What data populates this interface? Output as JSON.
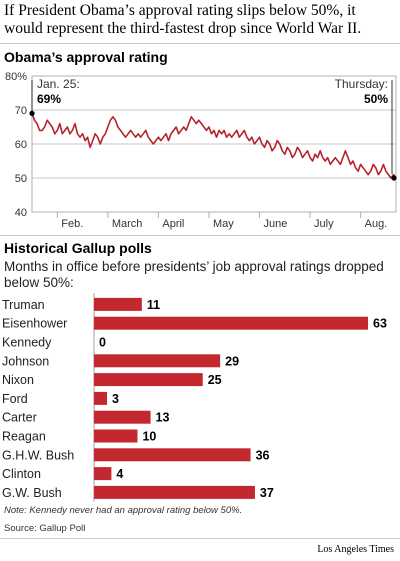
{
  "headline": "If President Obama’s approval rating slips below 50%, it would represent the third-fastest drop since World War II.",
  "line_section_title": "Obama’s approval rating",
  "bar_section_title": "Historical Gallup polls",
  "bar_subtitle": "Months in office before presidents’ job approval ratings dropped below 50%:",
  "note": "Note: Kennedy never had an approval rating below 50%.",
  "source": "Source: Gallup Poll",
  "credit": "Los Angeles Times",
  "colors": {
    "line": "#b5242a",
    "bar": "#c2282e",
    "grid": "#b0b0b0"
  },
  "chart_data": [
    {
      "type": "line",
      "title": "Obama’s approval rating",
      "xlabel": "",
      "ylabel": "",
      "y_ticks": [
        "80%",
        "70",
        "60",
        "50",
        "40"
      ],
      "ylim": [
        40,
        80
      ],
      "x_ticks": [
        "Feb.",
        "March",
        "April",
        "May",
        "June",
        "July",
        "Aug."
      ],
      "xlim": [
        0,
        7.2
      ],
      "annotations": [
        {
          "label": "Jan. 25:",
          "value": "69%",
          "x": 0,
          "y": 69
        },
        {
          "label": "Thursday:",
          "value": "50%",
          "x": 7.2,
          "y": 50
        }
      ],
      "series": [
        {
          "values": [
            [
              0.0,
              69
            ],
            [
              0.05,
              67
            ],
            [
              0.1,
              66
            ],
            [
              0.15,
              64
            ],
            [
              0.2,
              64
            ],
            [
              0.25,
              65
            ],
            [
              0.3,
              67
            ],
            [
              0.35,
              66
            ],
            [
              0.4,
              65
            ],
            [
              0.45,
              63
            ],
            [
              0.5,
              64
            ],
            [
              0.55,
              66
            ],
            [
              0.6,
              63
            ],
            [
              0.65,
              64
            ],
            [
              0.7,
              65
            ],
            [
              0.75,
              63
            ],
            [
              0.8,
              64
            ],
            [
              0.85,
              66
            ],
            [
              0.9,
              63
            ],
            [
              0.95,
              62
            ],
            [
              1.0,
              63
            ],
            [
              1.05,
              61
            ],
            [
              1.1,
              62
            ],
            [
              1.15,
              59
            ],
            [
              1.2,
              61
            ],
            [
              1.25,
              63
            ],
            [
              1.3,
              62
            ],
            [
              1.35,
              60
            ],
            [
              1.4,
              62
            ],
            [
              1.45,
              63
            ],
            [
              1.5,
              65
            ],
            [
              1.55,
              67
            ],
            [
              1.6,
              68
            ],
            [
              1.65,
              67
            ],
            [
              1.7,
              65
            ],
            [
              1.75,
              64
            ],
            [
              1.8,
              63
            ],
            [
              1.85,
              62
            ],
            [
              1.9,
              63
            ],
            [
              1.95,
              64
            ],
            [
              2.0,
              63
            ],
            [
              2.05,
              62
            ],
            [
              2.1,
              63
            ],
            [
              2.15,
              62
            ],
            [
              2.2,
              63
            ],
            [
              2.25,
              64
            ],
            [
              2.3,
              62
            ],
            [
              2.35,
              61
            ],
            [
              2.4,
              60
            ],
            [
              2.45,
              61
            ],
            [
              2.5,
              62
            ],
            [
              2.55,
              61
            ],
            [
              2.6,
              62
            ],
            [
              2.65,
              63
            ],
            [
              2.7,
              61
            ],
            [
              2.75,
              63
            ],
            [
              2.8,
              64
            ],
            [
              2.85,
              65
            ],
            [
              2.9,
              63
            ],
            [
              2.95,
              64
            ],
            [
              3.0,
              65
            ],
            [
              3.05,
              64
            ],
            [
              3.1,
              66
            ],
            [
              3.15,
              68
            ],
            [
              3.2,
              67
            ],
            [
              3.25,
              66
            ],
            [
              3.3,
              67
            ],
            [
              3.35,
              66
            ],
            [
              3.4,
              65
            ],
            [
              3.45,
              64
            ],
            [
              3.5,
              65
            ],
            [
              3.55,
              63
            ],
            [
              3.6,
              64
            ],
            [
              3.65,
              62
            ],
            [
              3.7,
              64
            ],
            [
              3.75,
              63
            ],
            [
              3.8,
              64
            ],
            [
              3.85,
              62
            ],
            [
              3.9,
              63
            ],
            [
              3.95,
              62
            ],
            [
              4.0,
              63
            ],
            [
              4.05,
              64
            ],
            [
              4.1,
              62
            ],
            [
              4.15,
              63
            ],
            [
              4.2,
              64
            ],
            [
              4.25,
              62
            ],
            [
              4.3,
              61
            ],
            [
              4.35,
              62
            ],
            [
              4.4,
              60
            ],
            [
              4.45,
              61
            ],
            [
              4.5,
              62
            ],
            [
              4.55,
              60
            ],
            [
              4.6,
              59
            ],
            [
              4.65,
              61
            ],
            [
              4.7,
              60
            ],
            [
              4.75,
              58
            ],
            [
              4.8,
              59
            ],
            [
              4.85,
              61
            ],
            [
              4.9,
              60
            ],
            [
              4.95,
              58
            ],
            [
              5.0,
              57
            ],
            [
              5.05,
              59
            ],
            [
              5.1,
              58
            ],
            [
              5.15,
              56
            ],
            [
              5.2,
              57
            ],
            [
              5.25,
              59
            ],
            [
              5.3,
              58
            ],
            [
              5.35,
              56
            ],
            [
              5.4,
              57
            ],
            [
              5.45,
              58
            ],
            [
              5.5,
              56
            ],
            [
              5.55,
              55
            ],
            [
              5.6,
              57
            ],
            [
              5.65,
              56
            ],
            [
              5.7,
              58
            ],
            [
              5.75,
              56
            ],
            [
              5.8,
              55
            ],
            [
              5.85,
              56
            ],
            [
              5.9,
              54
            ],
            [
              5.95,
              55
            ],
            [
              6.0,
              56
            ],
            [
              6.05,
              55
            ],
            [
              6.1,
              54
            ],
            [
              6.15,
              56
            ],
            [
              6.2,
              58
            ],
            [
              6.25,
              56
            ],
            [
              6.3,
              54
            ],
            [
              6.35,
              55
            ],
            [
              6.4,
              53
            ],
            [
              6.45,
              52
            ],
            [
              6.5,
              54
            ],
            [
              6.55,
              53
            ],
            [
              6.6,
              52
            ],
            [
              6.65,
              51
            ],
            [
              6.7,
              52
            ],
            [
              6.75,
              54
            ],
            [
              6.8,
              53
            ],
            [
              6.85,
              51
            ],
            [
              6.9,
              52
            ],
            [
              6.95,
              54
            ],
            [
              7.0,
              52
            ],
            [
              7.05,
              51
            ],
            [
              7.1,
              50
            ],
            [
              7.15,
              51
            ],
            [
              7.2,
              50
            ]
          ]
        }
      ]
    },
    {
      "type": "bar",
      "title": "Historical Gallup polls",
      "xlabel": "",
      "ylabel": "",
      "categories": [
        "Truman",
        "Eisenhower",
        "Kennedy",
        "Johnson",
        "Nixon",
        "Ford",
        "Carter",
        "Reagan",
        "G.H.W. Bush",
        "Clinton",
        "G.W. Bush"
      ],
      "values": [
        11,
        63,
        0,
        29,
        25,
        3,
        13,
        10,
        36,
        4,
        37
      ],
      "value_labels": [
        "11",
        "63",
        "0",
        "29",
        "25",
        "3",
        "13",
        "10",
        "36",
        "4",
        "37"
      ],
      "xlim": [
        0,
        63
      ]
    }
  ]
}
